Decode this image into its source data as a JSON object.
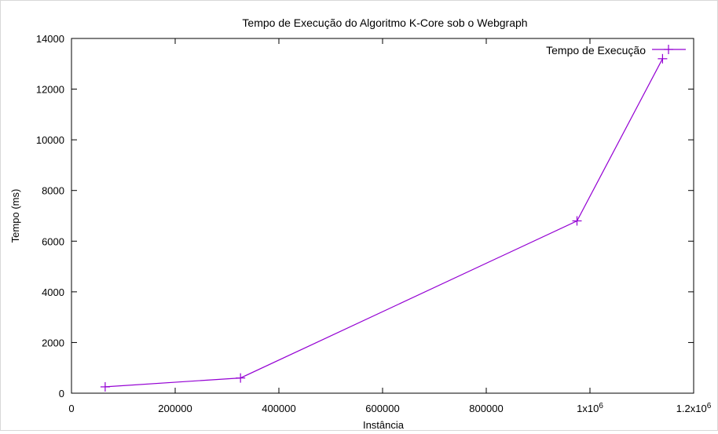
{
  "chart_data": {
    "type": "line",
    "title": "Tempo de Execução do Algoritmo K-Core sob o Webgraph",
    "xlabel": "Instância",
    "ylabel": "Tempo (ms)",
    "xlim": [
      0,
      1200000
    ],
    "ylim": [
      0,
      14000
    ],
    "x_ticks": [
      {
        "value": 0,
        "label": "0"
      },
      {
        "value": 200000,
        "label": "200000"
      },
      {
        "value": 400000,
        "label": "400000"
      },
      {
        "value": 600000,
        "label": "600000"
      },
      {
        "value": 800000,
        "label": "800000"
      },
      {
        "value": 1000000,
        "label": "1x10",
        "exp": "6"
      },
      {
        "value": 1200000,
        "label": "1.2x10",
        "exp": "6"
      }
    ],
    "y_ticks": [
      {
        "value": 0,
        "label": "0"
      },
      {
        "value": 2000,
        "label": "2000"
      },
      {
        "value": 4000,
        "label": "4000"
      },
      {
        "value": 6000,
        "label": "6000"
      },
      {
        "value": 8000,
        "label": "8000"
      },
      {
        "value": 10000,
        "label": "10000"
      },
      {
        "value": 12000,
        "label": "12000"
      },
      {
        "value": 14000,
        "label": "14000"
      }
    ],
    "grid": false,
    "legend": "top-right",
    "series": [
      {
        "name": "Tempo de Execução",
        "color": "#9400d3",
        "marker": "plus",
        "x": [
          65000,
          326000,
          975000,
          1140000
        ],
        "y": [
          250,
          600,
          6800,
          13200
        ]
      }
    ]
  }
}
